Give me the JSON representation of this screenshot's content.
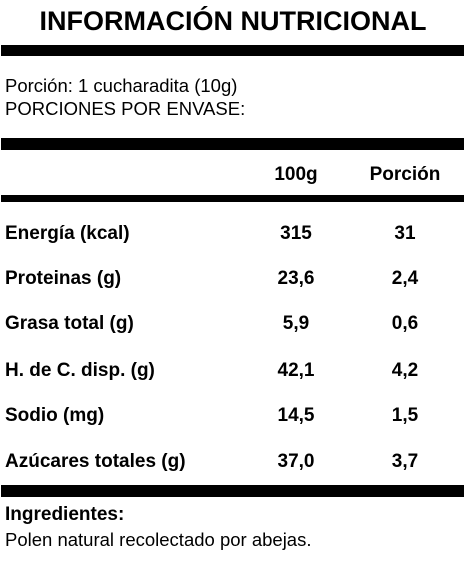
{
  "header": {
    "title": "INFORMACIÓN NUTRICIONAL"
  },
  "serving": {
    "portion": "Porción: 1 cucharadita (10g)",
    "servings_per_container": "PORCIONES POR ENVASE:"
  },
  "table": {
    "columns": [
      "100g",
      "Porción"
    ],
    "rows": [
      [
        "Energía (kcal)",
        "315",
        "31"
      ],
      [
        "Proteinas (g)",
        "23,6",
        "2,4"
      ],
      [
        "Grasa total (g)",
        "5,9",
        "0,6"
      ],
      [
        "H. de C. disp. (g)",
        "42,1",
        "4,2"
      ],
      [
        "Sodio (mg)",
        "14,5",
        "1,5"
      ],
      [
        "Azúcares totales (g)",
        "37,0",
        "3,7"
      ]
    ]
  },
  "ingredients": {
    "label": "Ingredientes:",
    "text": "Polen natural recolectado por abejas."
  }
}
